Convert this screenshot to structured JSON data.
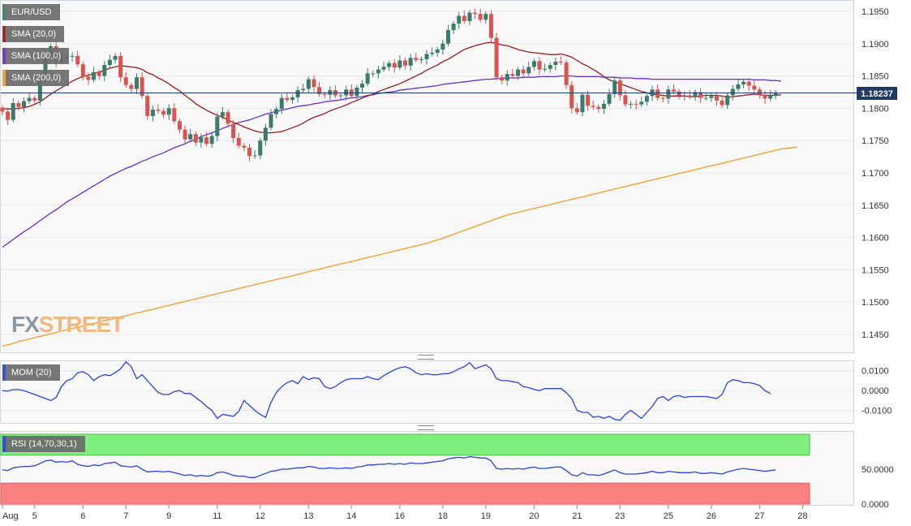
{
  "chart_data": [
    {
      "type": "candlestick",
      "symbol": "EUR/USD",
      "x_ticks": [
        {
          "label": "Aug",
          "i": 0
        },
        {
          "label": "5",
          "i": 6
        },
        {
          "label": "6",
          "i": 15
        },
        {
          "label": "7",
          "i": 23
        },
        {
          "label": "9",
          "i": 31
        },
        {
          "label": "11",
          "i": 40
        },
        {
          "label": "12",
          "i": 48
        },
        {
          "label": "13",
          "i": 57
        },
        {
          "label": "14",
          "i": 65
        },
        {
          "label": "16",
          "i": 74
        },
        {
          "label": "18",
          "i": 82
        },
        {
          "label": "19",
          "i": 90
        },
        {
          "label": "20",
          "i": 99
        },
        {
          "label": "21",
          "i": 107
        },
        {
          "label": "23",
          "i": 115
        },
        {
          "label": "25",
          "i": 124
        },
        {
          "label": "26",
          "i": 132
        },
        {
          "label": "27",
          "i": 141
        },
        {
          "label": "28",
          "i": 149
        }
      ],
      "y_ticks": [
        "1.1950",
        "1.1900",
        "1.1850",
        "1.1800",
        "1.1750",
        "1.1700",
        "1.1650",
        "1.1600",
        "1.1550",
        "1.1500",
        "1.1450"
      ],
      "ylim": [
        1.143,
        1.197
      ],
      "last_price": "1.18237",
      "last_price_value": 1.18237,
      "legend": [
        {
          "label": "EUR/USD",
          "color": "#3a7b6a"
        },
        {
          "label": "SMA (20,0)",
          "color": "#9a1b1b"
        },
        {
          "label": "SMA (100,0)",
          "color": "#6a2bd6"
        },
        {
          "label": "SMA (200,0)",
          "color": "#f39c26"
        }
      ],
      "colors": {
        "up": "#3a7b6a",
        "down": "#d9534f",
        "sma20": "#9a1b1b",
        "sma100": "#6a2bd6",
        "sma200": "#f39c26",
        "price_line": "#1f3a66"
      },
      "closes": [
        1.1795,
        1.1782,
        1.1808,
        1.1802,
        1.1811,
        1.1816,
        1.1812,
        1.1843,
        1.1878,
        1.1896,
        1.1872,
        1.1878,
        1.188,
        1.1881,
        1.1868,
        1.1849,
        1.1844,
        1.1856,
        1.185,
        1.1867,
        1.1875,
        1.1881,
        1.1848,
        1.1836,
        1.183,
        1.1848,
        1.1819,
        1.1788,
        1.1798,
        1.1796,
        1.179,
        1.18,
        1.178,
        1.1767,
        1.1752,
        1.176,
        1.1747,
        1.1755,
        1.1745,
        1.1757,
        1.1787,
        1.1794,
        1.1776,
        1.1754,
        1.1742,
        1.1739,
        1.1726,
        1.1727,
        1.175,
        1.177,
        1.1791,
        1.1799,
        1.1816,
        1.1813,
        1.1817,
        1.1828,
        1.183,
        1.1845,
        1.1833,
        1.1822,
        1.1821,
        1.1828,
        1.182,
        1.182,
        1.1829,
        1.1819,
        1.1832,
        1.1838,
        1.1854,
        1.1854,
        1.186,
        1.1864,
        1.187,
        1.1863,
        1.1874,
        1.1866,
        1.1878,
        1.1875,
        1.1876,
        1.1884,
        1.1886,
        1.1891,
        1.19,
        1.1921,
        1.1931,
        1.1943,
        1.1935,
        1.1948,
        1.1946,
        1.1937,
        1.1946,
        1.1909,
        1.1848,
        1.1843,
        1.1853,
        1.185,
        1.186,
        1.1854,
        1.1864,
        1.1873,
        1.186,
        1.1861,
        1.1867,
        1.1872,
        1.1871,
        1.1836,
        1.18,
        1.1794,
        1.1821,
        1.1804,
        1.1802,
        1.1799,
        1.1807,
        1.1822,
        1.1843,
        1.182,
        1.1806,
        1.1807,
        1.1806,
        1.181,
        1.1819,
        1.1829,
        1.1816,
        1.1815,
        1.1829,
        1.1826,
        1.182,
        1.182,
        1.1818,
        1.1825,
        1.1816,
        1.1816,
        1.1819,
        1.1812,
        1.1805,
        1.182,
        1.183,
        1.1837,
        1.1841,
        1.1835,
        1.1829,
        1.1821,
        1.1815,
        1.182,
        1.1824
      ],
      "sma20": [
        1.18,
        1.1799,
        1.1799,
        1.18,
        1.1801,
        1.1803,
        1.1806,
        1.181,
        1.1816,
        1.1822,
        1.1827,
        1.1832,
        1.1837,
        1.1842,
        1.1846,
        1.1849,
        1.1851,
        1.1854,
        1.1856,
        1.1859,
        1.1862,
        1.1864,
        1.1866,
        1.1865,
        1.1864,
        1.1863,
        1.186,
        1.1855,
        1.1852,
        1.1847,
        1.1843,
        1.1838,
        1.1832,
        1.1827,
        1.182,
        1.1814,
        1.1807,
        1.1802,
        1.1797,
        1.1793,
        1.1789,
        1.1786,
        1.1782,
        1.1778,
        1.1775,
        1.1771,
        1.1768,
        1.1765,
        1.1763,
        1.1762,
        1.1762,
        1.1763,
        1.1764,
        1.1767,
        1.177,
        1.1773,
        1.1777,
        1.1782,
        1.1786,
        1.1789,
        1.1792,
        1.1796,
        1.1799,
        1.1802,
        1.1805,
        1.1809,
        1.1812,
        1.1816,
        1.1819,
        1.1822,
        1.1826,
        1.1829,
        1.1832,
        1.1835,
        1.1838,
        1.1842,
        1.1846,
        1.185,
        1.1854,
        1.1859,
        1.1863,
        1.1867,
        1.1872,
        1.1876,
        1.1881,
        1.1886,
        1.1891,
        1.1894,
        1.1897,
        1.1899,
        1.1901,
        1.1902,
        1.19,
        1.1898,
        1.1897,
        1.1894,
        1.1891,
        1.1889,
        1.1887,
        1.1886,
        1.1885,
        1.1884,
        1.1883,
        1.1883,
        1.1884,
        1.1882,
        1.1879,
        1.1874,
        1.1869,
        1.1865,
        1.186,
        1.1855,
        1.1849,
        1.1844,
        1.1841,
        1.1838,
        1.1835,
        1.1832,
        1.1829,
        1.1826,
        1.1824,
        1.1822,
        1.1821,
        1.182,
        1.1819,
        1.1819,
        1.1819,
        1.1819,
        1.1818,
        1.1818,
        1.1819,
        1.182,
        1.182,
        1.182,
        1.1819,
        1.1817,
        1.1818,
        1.1819,
        1.182,
        1.1821,
        1.1822,
        1.1821,
        1.182,
        1.182,
        1.182,
        1.1821
      ],
      "sma100": [
        1.1585,
        1.1591,
        1.1597,
        1.1603,
        1.1609,
        1.1614,
        1.162,
        1.1626,
        1.1632,
        1.1638,
        1.1643,
        1.1649,
        1.1655,
        1.166,
        1.1665,
        1.167,
        1.1675,
        1.168,
        1.1685,
        1.169,
        1.1695,
        1.1699,
        1.1703,
        1.1707,
        1.171,
        1.1714,
        1.1718,
        1.1721,
        1.1725,
        1.1728,
        1.1731,
        1.1735,
        1.1739,
        1.1742,
        1.1745,
        1.1749,
        1.1752,
        1.1756,
        1.1759,
        1.1762,
        1.1765,
        1.1769,
        1.1772,
        1.1775,
        1.1778,
        1.178,
        1.1782,
        1.1785,
        1.1788,
        1.1791,
        1.1793,
        1.1795,
        1.1797,
        1.1799,
        1.1801,
        1.1803,
        1.1804,
        1.1805,
        1.1807,
        1.1808,
        1.181,
        1.1811,
        1.1812,
        1.1813,
        1.1815,
        1.1816,
        1.1817,
        1.1818,
        1.182,
        1.1821,
        1.1823,
        1.1824,
        1.1825,
        1.1826,
        1.1828,
        1.1829,
        1.183,
        1.1831,
        1.1832,
        1.1833,
        1.1834,
        1.1835,
        1.1837,
        1.1838,
        1.1839,
        1.184,
        1.1841,
        1.1842,
        1.1843,
        1.1844,
        1.1845,
        1.1845,
        1.1846,
        1.1846,
        1.1847,
        1.1847,
        1.1847,
        1.1848,
        1.1848,
        1.1848,
        1.1849,
        1.1849,
        1.1849,
        1.1849,
        1.185,
        1.185,
        1.185,
        1.1849,
        1.1849,
        1.1849,
        1.1849,
        1.1849,
        1.1848,
        1.1848,
        1.1848,
        1.1847,
        1.1847,
        1.1847,
        1.1846,
        1.1846,
        1.1846,
        1.1845,
        1.1845,
        1.1845,
        1.1845,
        1.1845,
        1.1845,
        1.1845,
        1.1845,
        1.1845,
        1.1845,
        1.1845,
        1.1845,
        1.1845,
        1.1845,
        1.1845,
        1.1845,
        1.1845,
        1.1845,
        1.1845,
        1.1844,
        1.1844,
        1.1844,
        1.1843,
        1.1843,
        1.1842
      ],
      "sma200": [
        1.1432,
        1.1434,
        1.1436,
        1.1439,
        1.1441,
        1.1443,
        1.1445,
        1.1447,
        1.1449,
        1.1451,
        1.1453,
        1.1455,
        1.1457,
        1.1459,
        1.1461,
        1.1463,
        1.1465,
        1.1467,
        1.1469,
        1.1471,
        1.1473,
        1.1475,
        1.1477,
        1.1479,
        1.1481,
        1.1483,
        1.1485,
        1.1487,
        1.1489,
        1.1491,
        1.1493,
        1.1495,
        1.1497,
        1.1499,
        1.1501,
        1.1503,
        1.1505,
        1.1507,
        1.1509,
        1.1511,
        1.1513,
        1.1515,
        1.1517,
        1.1519,
        1.1521,
        1.1523,
        1.1525,
        1.1527,
        1.1529,
        1.1531,
        1.1533,
        1.1535,
        1.1537,
        1.1539,
        1.1541,
        1.1543,
        1.1545,
        1.1547,
        1.1549,
        1.1551,
        1.1553,
        1.1555,
        1.1557,
        1.1559,
        1.1561,
        1.1563,
        1.1565,
        1.1567,
        1.1569,
        1.1571,
        1.1573,
        1.1575,
        1.1577,
        1.1579,
        1.1581,
        1.1583,
        1.1585,
        1.1587,
        1.1589,
        1.1591,
        1.1594,
        1.1596,
        1.1599,
        1.1602,
        1.1605,
        1.1608,
        1.1611,
        1.1614,
        1.1617,
        1.162,
        1.1623,
        1.1626,
        1.1629,
        1.1632,
        1.1635,
        1.1637,
        1.1639,
        1.1641,
        1.1643,
        1.1645,
        1.1647,
        1.1649,
        1.1651,
        1.1653,
        1.1655,
        1.1657,
        1.1659,
        1.1661,
        1.1663,
        1.1665,
        1.1667,
        1.1669,
        1.1671,
        1.1673,
        1.1675,
        1.1677,
        1.1679,
        1.1681,
        1.1683,
        1.1685,
        1.1687,
        1.1689,
        1.1691,
        1.1693,
        1.1695,
        1.1697,
        1.1699,
        1.1701,
        1.1703,
        1.1705,
        1.1707,
        1.1709,
        1.1711,
        1.1713,
        1.1715,
        1.1717,
        1.1719,
        1.1721,
        1.1723,
        1.1725,
        1.1727,
        1.1729,
        1.1731,
        1.1733,
        1.1735,
        1.1737,
        1.1738,
        1.1739,
        1.174
      ]
    },
    {
      "type": "line",
      "legend": "MOM (20)",
      "color": "#2b43e0",
      "y_ticks": [
        "0.0100",
        "0.0000",
        "-0.0100"
      ],
      "ylim": [
        -0.0163,
        0.0152
      ],
      "values": [
        0.0,
        -0.0003,
        0.0005,
        0.0005,
        0.0,
        -0.001,
        -0.002,
        -0.003,
        -0.004,
        -0.005,
        -0.0035,
        0.002,
        0.005,
        0.006,
        0.009,
        0.0095,
        0.008,
        0.005,
        0.007,
        0.008,
        0.0075,
        0.009,
        0.011,
        0.0145,
        0.012,
        0.006,
        0.008,
        0.005,
        0.002,
        -0.001,
        -0.002,
        -0.002,
        -0.0005,
        0.0,
        -0.0015,
        -0.0015,
        -0.0035,
        -0.0055,
        -0.008,
        -0.01,
        -0.014,
        -0.012,
        -0.0125,
        -0.013,
        -0.0105,
        -0.005,
        -0.0075,
        -0.01,
        -0.012,
        -0.0135,
        -0.006,
        -0.001,
        0.002,
        0.004,
        0.005,
        0.0035,
        0.007,
        0.0055,
        0.0065,
        0.006,
        0.002,
        0.001,
        0.002,
        0.004,
        0.0055,
        0.006,
        0.006,
        0.006,
        0.007,
        0.006,
        0.0055,
        0.0075,
        0.009,
        0.0105,
        0.0115,
        0.012,
        0.011,
        0.009,
        0.008,
        0.0085,
        0.008,
        0.008,
        0.0085,
        0.0085,
        0.0095,
        0.011,
        0.012,
        0.014,
        0.011,
        0.012,
        0.013,
        0.011,
        0.006,
        0.005,
        0.005,
        0.0045,
        0.004,
        0.002,
        0.0015,
        0.0005,
        0.0,
        0.001,
        0.001,
        0.001,
        0.001,
        -0.001,
        -0.004,
        -0.01,
        -0.011,
        -0.011,
        -0.0135,
        -0.013,
        -0.014,
        -0.013,
        -0.0145,
        -0.015,
        -0.012,
        -0.01,
        -0.012,
        -0.014,
        -0.011,
        -0.008,
        -0.004,
        -0.003,
        -0.005,
        -0.003,
        -0.0025,
        -0.0035,
        -0.003,
        -0.003,
        -0.003,
        -0.003,
        -0.0035,
        -0.004,
        -0.002,
        0.004,
        0.0055,
        0.005,
        0.004,
        0.004,
        0.0035,
        0.0025,
        0.0,
        -0.0015
      ]
    },
    {
      "type": "line",
      "legend": "RSI (14,70,30,1)",
      "color": "#2b43e0",
      "y_ticks": [
        "50.0000",
        "0.0000"
      ],
      "ylim": [
        0,
        100
      ],
      "overbought": 70,
      "oversold": 30,
      "zone_colors": {
        "overbought": "#7fef7f",
        "oversold": "#fb8080"
      },
      "values": [
        49,
        48,
        52,
        53,
        54,
        54,
        55,
        58,
        62,
        63,
        60,
        61,
        60,
        62,
        57,
        55,
        54,
        56,
        55,
        58,
        59,
        60,
        55,
        54,
        53,
        55,
        50,
        46,
        47,
        47,
        46,
        47,
        45,
        43,
        41,
        42,
        40,
        41,
        40,
        41,
        45,
        46,
        44,
        41,
        40,
        40,
        38,
        38,
        41,
        44,
        47,
        48,
        50,
        50,
        51,
        52,
        52,
        54,
        53,
        51,
        51,
        52,
        51,
        51,
        52,
        51,
        53,
        54,
        56,
        56,
        57,
        57,
        58,
        57,
        58,
        57,
        59,
        58,
        58,
        59,
        60,
        61,
        62,
        65,
        66,
        67,
        66,
        68,
        67,
        66,
        66,
        62,
        51,
        50,
        51,
        50,
        51,
        50,
        52,
        53,
        51,
        51,
        52,
        53,
        53,
        48,
        42,
        40,
        45,
        42,
        42,
        41,
        43,
        46,
        49,
        45,
        43,
        43,
        43,
        44,
        45,
        47,
        45,
        45,
        47,
        46,
        45,
        45,
        45,
        46,
        44,
        44,
        45,
        44,
        43,
        46,
        48,
        50,
        51,
        50,
        49,
        48,
        47,
        48,
        49
      ]
    }
  ]
}
